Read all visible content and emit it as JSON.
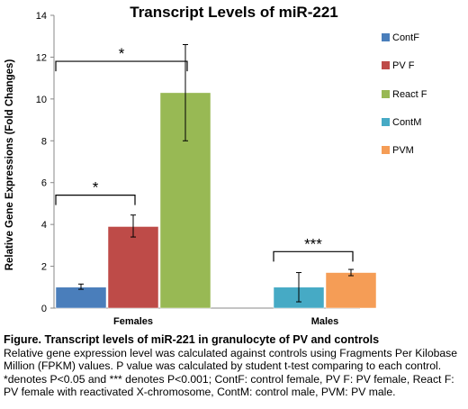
{
  "chart_data": {
    "type": "bar",
    "title": "Transcript Levels of miR-221",
    "ylabel": "Relative Gene Expressions  (Fold Changes)",
    "xlabel": "",
    "ylim": [
      0,
      14
    ],
    "yticks": [
      0,
      2,
      4,
      6,
      8,
      10,
      12,
      14
    ],
    "grid": false,
    "legend_position": "right",
    "groups": [
      {
        "label": "Females",
        "bars": [
          {
            "name": "ContF",
            "value": 1.0,
            "error_low": 0.9,
            "error_high": 1.15,
            "color": "#4a7ebb"
          },
          {
            "name": "PV F",
            "value": 3.9,
            "error_low": 3.4,
            "error_high": 4.45,
            "color": "#be4b48"
          },
          {
            "name": "React F",
            "value": 10.3,
            "error_low": 8.0,
            "error_high": 12.6,
            "color": "#98b954"
          }
        ]
      },
      {
        "label": "Males",
        "bars": [
          {
            "name": "ContM",
            "value": 1.0,
            "error_low": 0.3,
            "error_high": 1.7,
            "color": "#46aac5"
          },
          {
            "name": "PVM",
            "value": 1.7,
            "error_low": 1.55,
            "error_high": 1.85,
            "color": "#f59d56"
          }
        ]
      }
    ],
    "legend": [
      {
        "name": "ContF",
        "color": "#4a7ebb"
      },
      {
        "name": "PV F",
        "color": "#be4b48"
      },
      {
        "name": "React F",
        "color": "#98b954"
      },
      {
        "name": "ContM",
        "color": "#46aac5"
      },
      {
        "name": "PVM",
        "color": "#f59d56"
      }
    ],
    "significance": [
      {
        "group": 0,
        "from": 0,
        "to": 2,
        "bracket_y": 11.8,
        "label": "*"
      },
      {
        "group": 0,
        "from": 0,
        "to": 1,
        "bracket_y": 5.4,
        "label": "*"
      },
      {
        "group": 1,
        "from": 0,
        "to": 1,
        "bracket_y": 2.7,
        "label": "***"
      }
    ]
  },
  "caption": {
    "title": "Figure. Transcript levels of miR-221 in granulocyte of PV and controls",
    "lines": [
      "Relative gene expression level was calculated against controls using Fragments Per Kilobase",
      "Million (FPKM) values. P value was calculated by student t-test comparing to each control.",
      "*denotes  P<0.05 and *** denotes P<0.001; ContF: control female, PV F: PV female, React F:",
      "PV female with reactivated X-chromosome, ContM: control male, PVM: PV male."
    ]
  }
}
